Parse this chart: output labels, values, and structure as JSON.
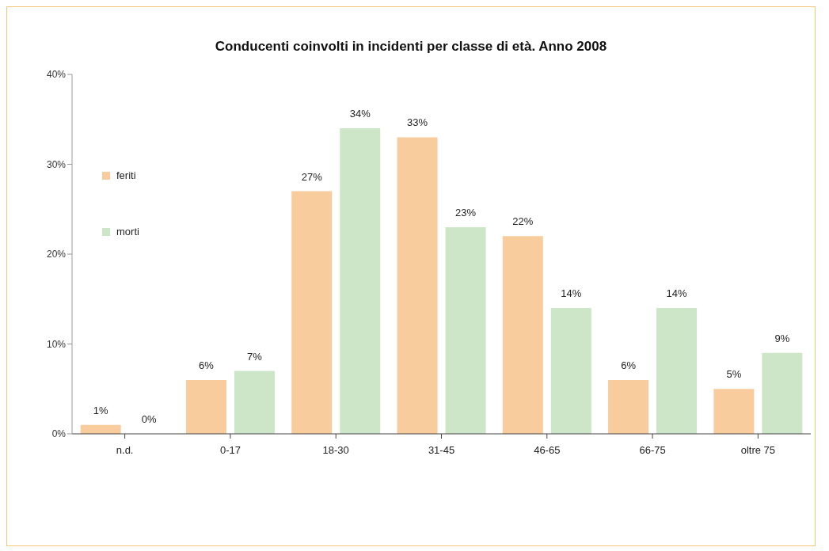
{
  "chart_data": {
    "type": "bar",
    "title": "Conducenti coinvolti in incidenti per classe di età. Anno 2008",
    "categories": [
      "n.d.",
      "0-17",
      "18-30",
      "31-45",
      "46-65",
      "66-75",
      "oltre 75"
    ],
    "series": [
      {
        "name": "feriti",
        "color": "#f9cc9d",
        "values": [
          1,
          6,
          27,
          33,
          22,
          6,
          5
        ],
        "value_labels": [
          "1%",
          "6%",
          "27%",
          "33%",
          "22%",
          "6%",
          "5%"
        ]
      },
      {
        "name": "morti",
        "color": "#cde6c8",
        "values": [
          0,
          7,
          34,
          23,
          14,
          14,
          9
        ],
        "value_labels": [
          "0%",
          "7%",
          "34%",
          "23%",
          "14%",
          "14%",
          "9%"
        ]
      }
    ],
    "ylim": [
      0,
      40
    ],
    "yticks": [
      {
        "value": 0,
        "label": "0%"
      },
      {
        "value": 10,
        "label": "10%"
      },
      {
        "value": 20,
        "label": "20%"
      },
      {
        "value": 30,
        "label": "30%"
      },
      {
        "value": 40,
        "label": "40%"
      }
    ],
    "grid": false,
    "legend": "top left"
  }
}
